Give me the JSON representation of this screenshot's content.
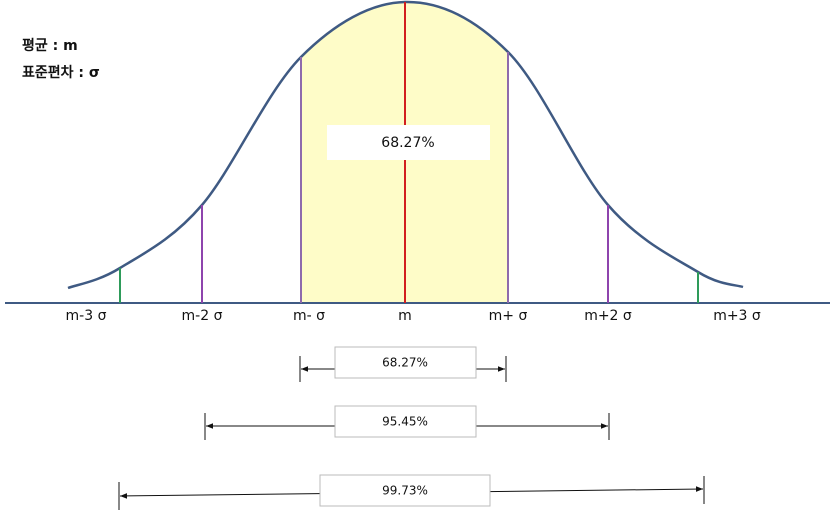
{
  "legend": {
    "mean": "평균 : m",
    "std": "표준편차 : σ"
  },
  "center_label": "68.27%",
  "axis_labels": [
    "m-3 σ",
    "m-2 σ",
    "m- σ",
    "m",
    "m+ σ",
    "m+2 σ",
    "m+3 σ"
  ],
  "ranges": [
    "68.27%",
    "95.45%",
    "99.73%"
  ]
}
